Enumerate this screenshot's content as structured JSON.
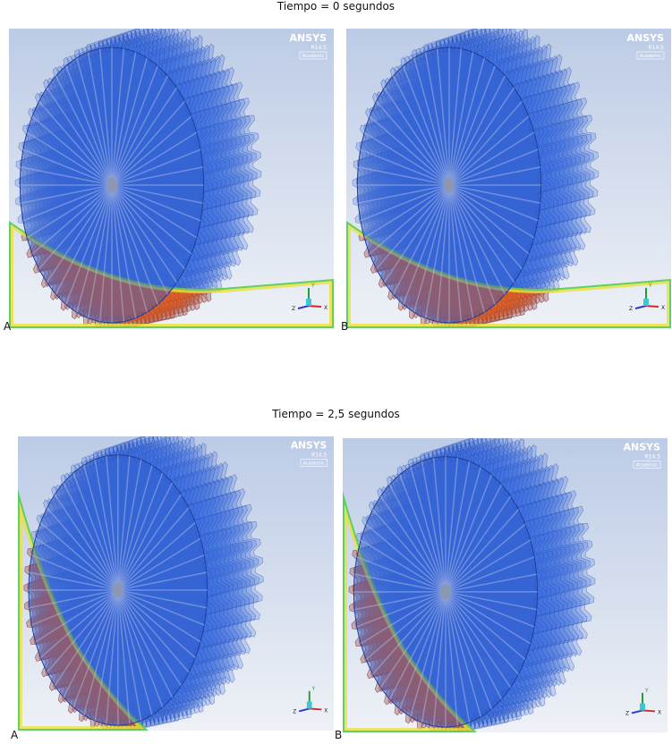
{
  "sections": [
    {
      "title": "Tiempo = 0 segundos",
      "panels": [
        {
          "label": "A",
          "logo": {
            "brand": "ANSYS",
            "version": "R14.5",
            "license": "Academic"
          },
          "axes": {
            "y": "Y",
            "z": "Z",
            "x": "X"
          }
        },
        {
          "label": "B",
          "logo": {
            "brand": "ANSYS",
            "version": "R14.5",
            "license": "Academic"
          },
          "axes": {
            "y": "Y",
            "z": "Z",
            "x": "X"
          }
        }
      ]
    },
    {
      "title": "Tiempo = 2,5 segundos",
      "panels": [
        {
          "label": "A",
          "logo": {
            "brand": "ANSYS",
            "version": "R14.5",
            "license": "Academic"
          },
          "axes": {
            "y": "Y",
            "z": "Z",
            "x": "X"
          }
        },
        {
          "label": "B",
          "logo": {
            "brand": "ANSYS",
            "version": "R14.5",
            "license": "Academic"
          },
          "axes": {
            "y": "Y",
            "z": "Z",
            "x": "X"
          }
        }
      ]
    }
  ]
}
